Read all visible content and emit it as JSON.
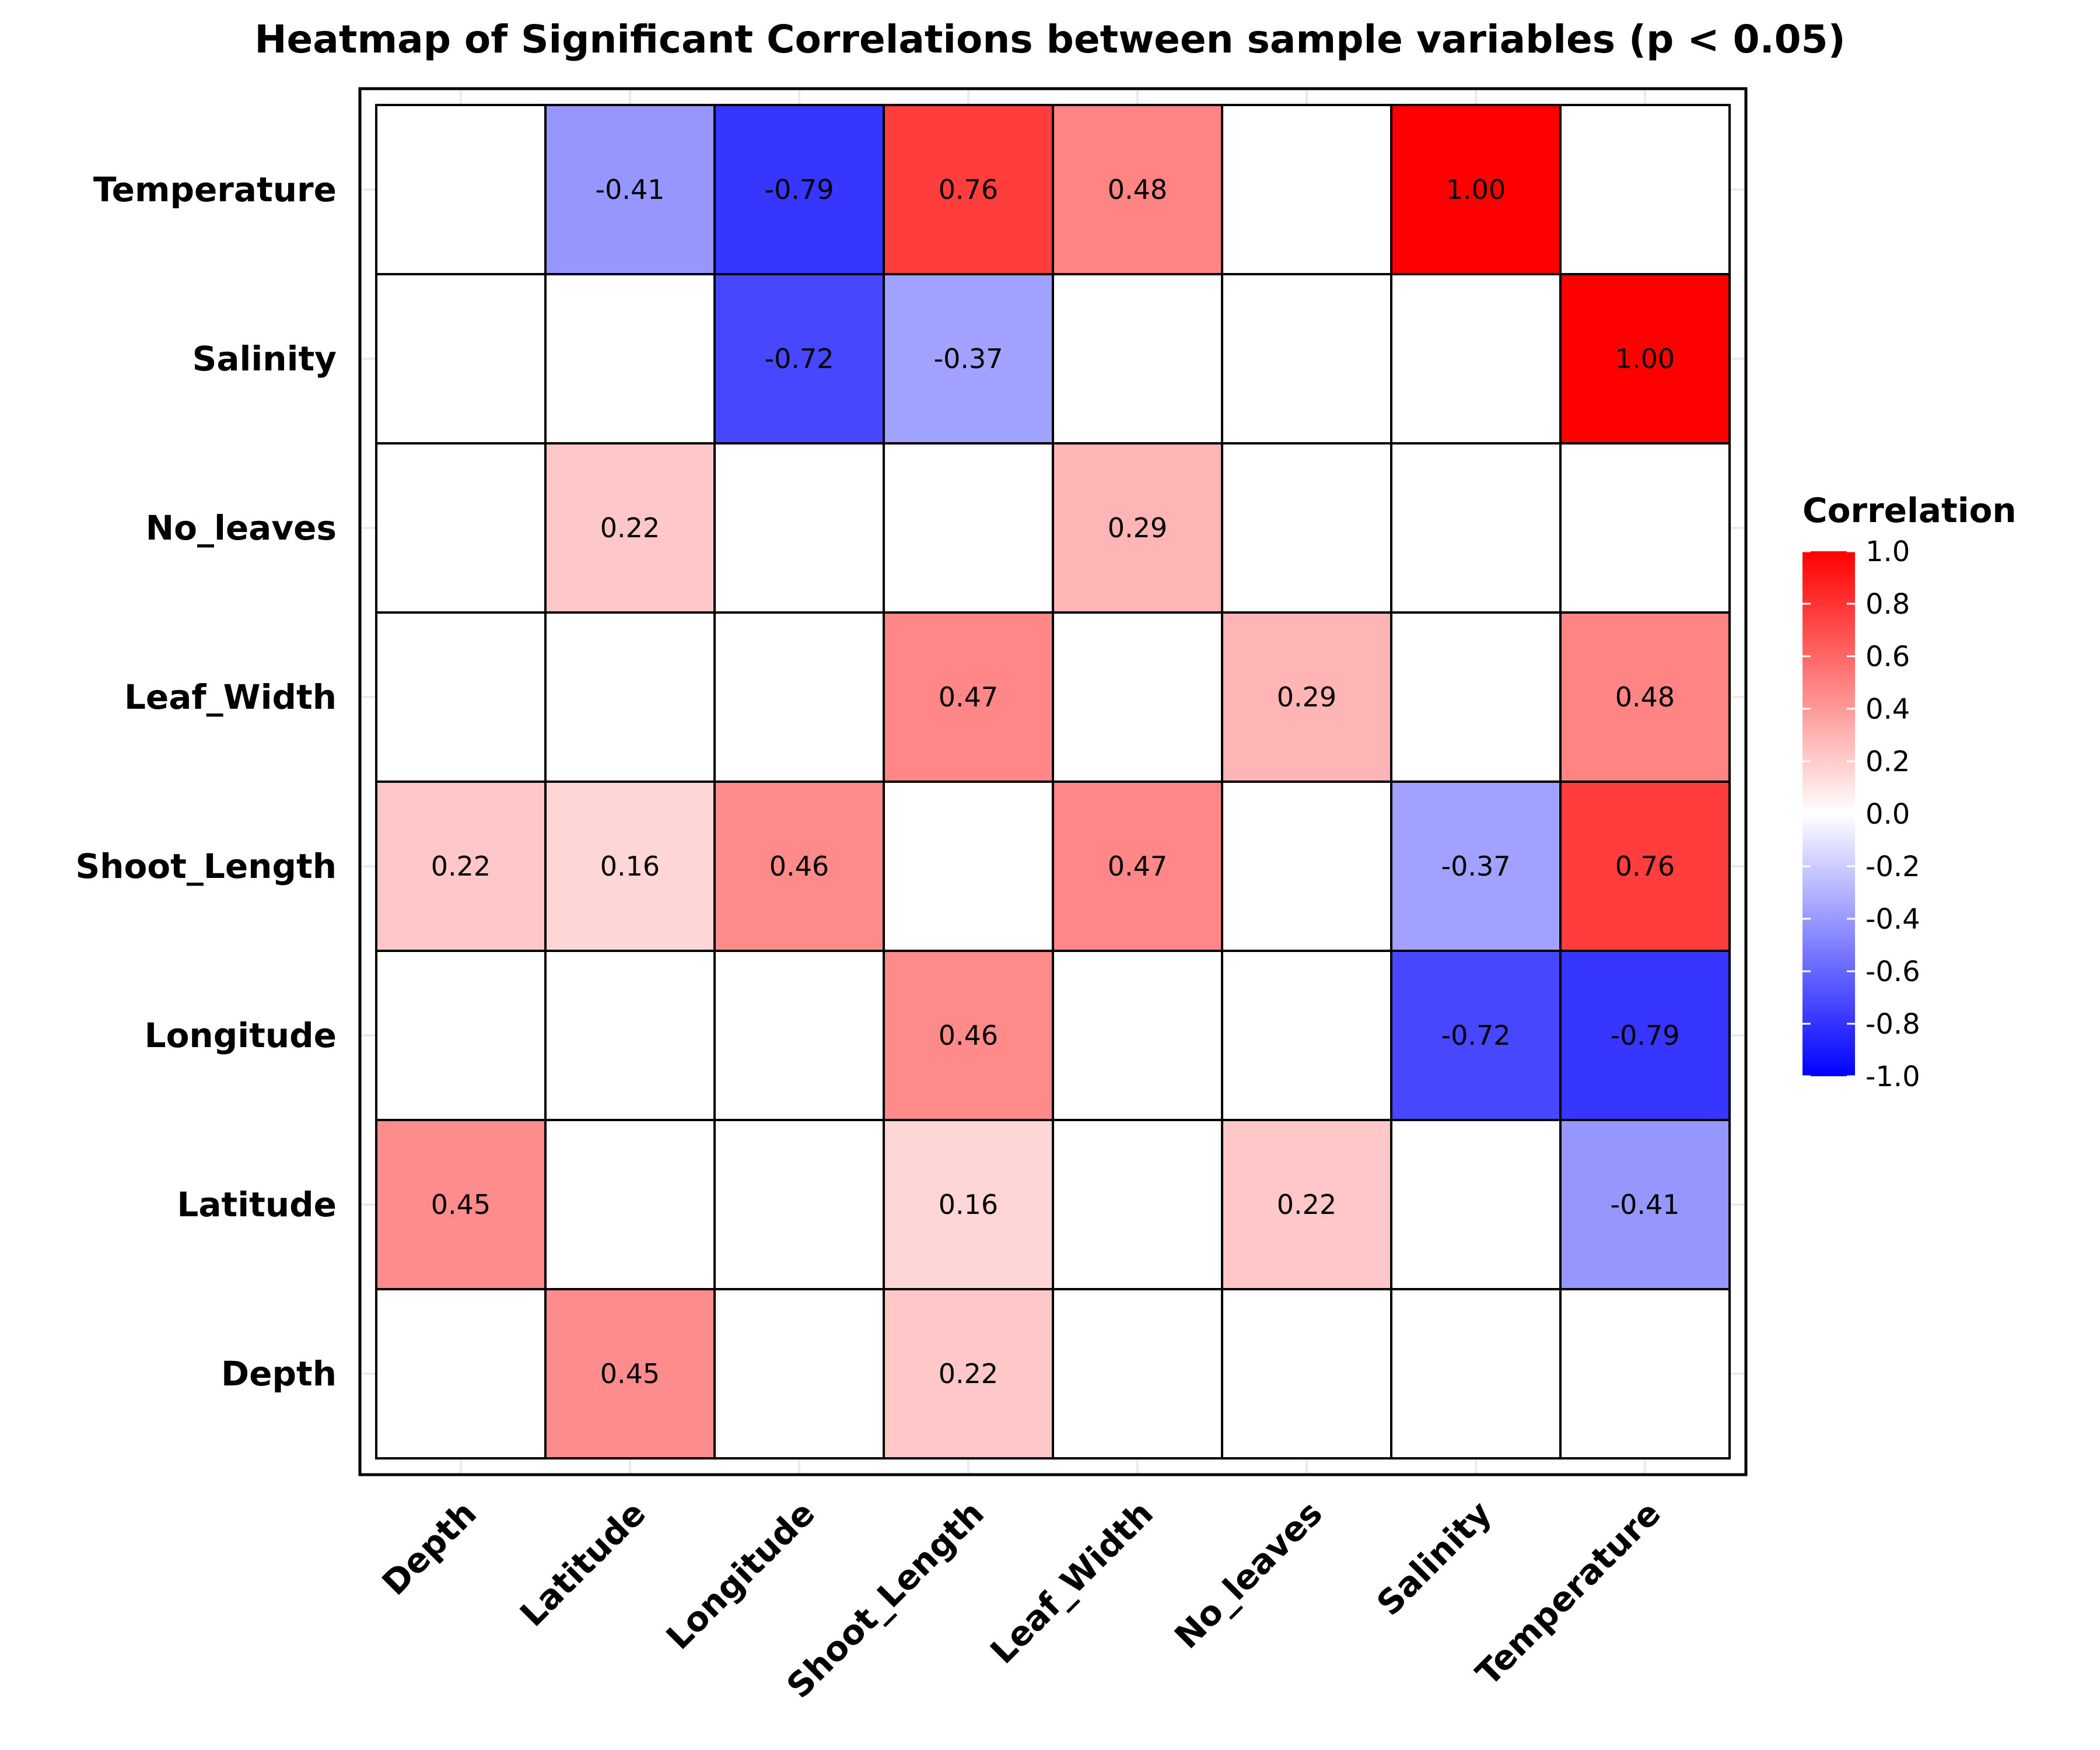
{
  "chart_data": {
    "type": "heatmap",
    "title": "Heatmap of Significant Correlations between sample variables (p < 0.05)",
    "x_categories": [
      "Depth",
      "Latitude",
      "Longitude",
      "Shoot_Length",
      "Leaf_Width",
      "No_leaves",
      "Salinity",
      "Temperature"
    ],
    "y_categories": [
      "Temperature",
      "Salinity",
      "No_leaves",
      "Leaf_Width",
      "Shoot_Length",
      "Longitude",
      "Latitude",
      "Depth"
    ],
    "values": [
      [
        null,
        -0.41,
        -0.79,
        0.76,
        0.48,
        null,
        1.0,
        null
      ],
      [
        null,
        null,
        -0.72,
        -0.37,
        null,
        null,
        null,
        1.0
      ],
      [
        null,
        0.22,
        null,
        null,
        0.29,
        null,
        null,
        null
      ],
      [
        null,
        null,
        null,
        0.47,
        null,
        0.29,
        null,
        0.48
      ],
      [
        0.22,
        0.16,
        0.46,
        null,
        0.47,
        null,
        -0.37,
        0.76
      ],
      [
        null,
        null,
        null,
        0.46,
        null,
        null,
        -0.72,
        -0.79
      ],
      [
        0.45,
        null,
        null,
        0.16,
        null,
        0.22,
        null,
        -0.41
      ],
      [
        null,
        0.45,
        null,
        0.22,
        null,
        null,
        null,
        null
      ]
    ],
    "value_format_decimals": 2,
    "color_scale": {
      "min": -1.0,
      "mid": 0.0,
      "max": 1.0,
      "low_color": "#0000ff",
      "mid_color": "#ffffff",
      "high_color": "#ff0000"
    },
    "empty_cell_color": "#ffffff",
    "legend": {
      "title": "Correlation",
      "placement": "right",
      "ticks": [
        1.0,
        0.8,
        0.6,
        0.4,
        0.2,
        0.0,
        -0.2,
        -0.4,
        -0.6,
        -0.8,
        -1.0
      ],
      "tick_labels": [
        "1.0",
        "0.8",
        "0.6",
        "0.4",
        "0.2",
        "0.0",
        "-0.2",
        "-0.4",
        "-0.6",
        "-0.8",
        "-1.0"
      ]
    },
    "x_tick_rotation_deg": 45,
    "grid": true
  }
}
